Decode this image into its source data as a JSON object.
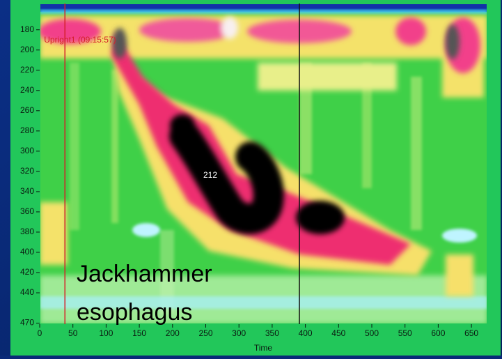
{
  "chart_data": {
    "type": "heatmap",
    "x_label": "Time",
    "xlim": [
      0,
      674
    ],
    "xticks": [
      0,
      50,
      100,
      150,
      200,
      250,
      300,
      350,
      400,
      450,
      500,
      550,
      600,
      650
    ],
    "ylim": [
      154,
      471
    ],
    "y_inverted": true,
    "yticks": [
      180,
      200,
      220,
      240,
      260,
      280,
      300,
      320,
      340,
      360,
      380,
      400,
      420,
      440,
      470
    ],
    "markers": [
      {
        "label": "Upright1 (09:15:57)",
        "x": 38,
        "color": "#d4202a"
      },
      {
        "x": 391,
        "color": "#111111"
      }
    ],
    "annotation": 212,
    "caption": [
      "Jackhammer",
      "esophagus"
    ]
  }
}
